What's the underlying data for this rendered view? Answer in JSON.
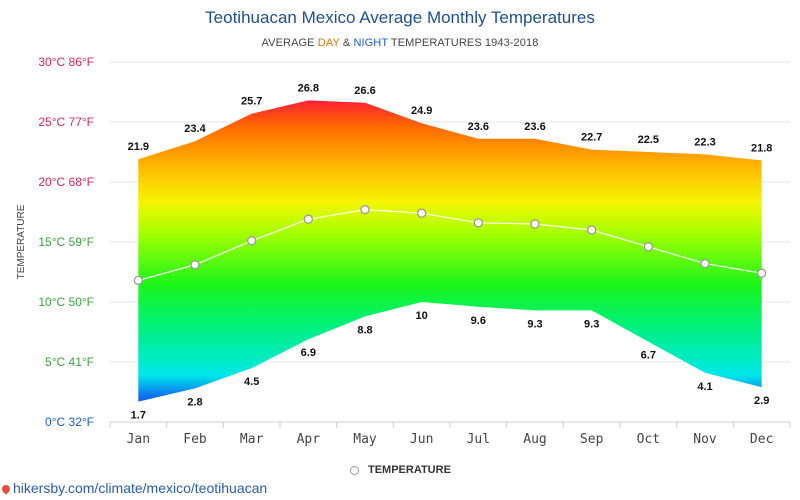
{
  "title": "Teotihuacan Mexico Average Monthly Temperatures",
  "subtitle": {
    "prefix": "AVERAGE ",
    "day": "DAY",
    "amp": " & ",
    "night": "NIGHT",
    "suffix": " TEMPERATURES 1943-2018"
  },
  "legend_label": "TEMPERATURE",
  "source": "hikersby.com/climate/mexico/teotihuacan",
  "chart_data": {
    "type": "area",
    "categories": [
      "Jan",
      "Feb",
      "Mar",
      "Apr",
      "May",
      "Jun",
      "Jul",
      "Aug",
      "Sep",
      "Oct",
      "Nov",
      "Dec"
    ],
    "series": [
      {
        "values": [
          21.9,
          23.4,
          25.7,
          26.8,
          26.6,
          24.9,
          23.6,
          23.6,
          22.7,
          22.5,
          22.3,
          21.8
        ]
      },
      {
        "values": [
          1.7,
          2.8,
          4.5,
          6.9,
          8.8,
          10,
          9.6,
          9.3,
          9.3,
          6.7,
          4.1,
          2.9
        ]
      },
      {
        "name": "TEMPERATURE",
        "values": [
          11.8,
          13.1,
          15.1,
          16.9,
          17.7,
          17.4,
          16.6,
          16.5,
          16.0,
          14.6,
          13.2,
          12.4
        ]
      }
    ],
    "ylabel": "TEMPERATURE",
    "ylim": [
      0,
      30
    ],
    "y_ticks": [
      {
        "c": 0,
        "label": "0°C 32°F",
        "color": "#1a5dd8"
      },
      {
        "c": 5,
        "label": "5°C 41°F",
        "color": "#3aa53a"
      },
      {
        "c": 10,
        "label": "10°C 50°F",
        "color": "#3aa53a"
      },
      {
        "c": 15,
        "label": "15°C 59°F",
        "color": "#3aa53a"
      },
      {
        "c": 20,
        "label": "20°C 68°F",
        "color": "#e0245e"
      },
      {
        "c": 25,
        "label": "25°C 77°F",
        "color": "#e0245e"
      },
      {
        "c": 30,
        "label": "30°C 86°F",
        "color": "#e0245e"
      }
    ],
    "grid": true,
    "legend_position": "bottom-center"
  }
}
